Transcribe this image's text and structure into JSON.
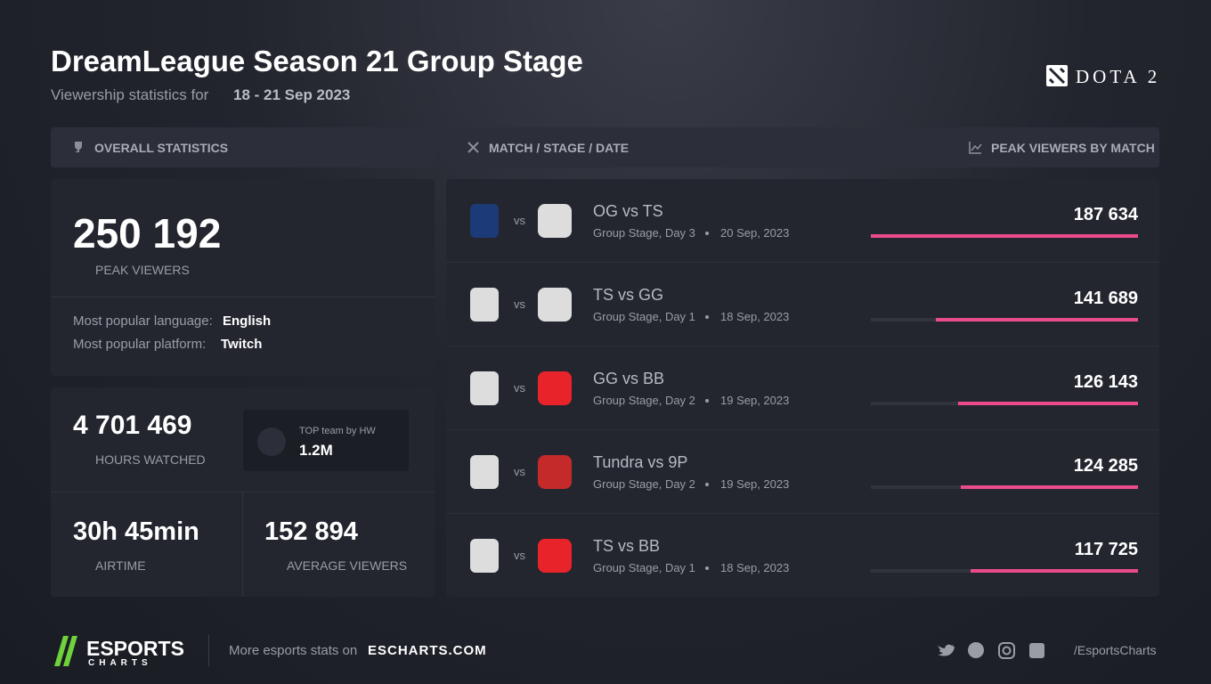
{
  "header": {
    "title": "DreamLeague Season 21 Group Stage",
    "subtitle": "Viewership statistics for",
    "dates": "18 - 21 Sep 2023",
    "game": "DOTA 2"
  },
  "overall": {
    "heading": "OVERALL STATISTICS",
    "peak_viewers": "250 192",
    "peak_viewers_label": "PEAK VIEWERS",
    "language_label": "Most popular language:",
    "language": "English",
    "platform_label": "Most popular platform:",
    "platform": "Twitch",
    "hours_watched": "4 701 469",
    "hours_watched_label": "HOURS WATCHED",
    "top_team_label": "TOP team by HW",
    "top_team_value": "1.2M",
    "airtime": "30h 45min",
    "airtime_label": "AIRTIME",
    "average_viewers": "152 894",
    "average_viewers_label": "AVERAGE VIEWERS"
  },
  "matches_heading": "MATCH / STAGE / DATE",
  "peak_heading": "PEAK VIEWERS BY MATCH",
  "vs_label": "vs",
  "matches": [
    {
      "title": "OG vs TS",
      "stage": "Group Stage, Day 3",
      "date": "20 Sep, 2023",
      "peak_viewers": {
        "value": 187634,
        "label": "187 634"
      }
    },
    {
      "title": "TS vs GG",
      "stage": "Group Stage, Day 1",
      "date": "18 Sep, 2023",
      "peak_viewers": {
        "value": 141689,
        "label": "141 689"
      }
    },
    {
      "title": "GG vs BB",
      "stage": "Group Stage, Day 2",
      "date": "19 Sep, 2023",
      "peak_viewers": {
        "value": 126143,
        "label": "126 143"
      }
    },
    {
      "title": "Tundra vs 9P",
      "stage": "Group Stage, Day 2",
      "date": "19 Sep, 2023",
      "peak_viewers": {
        "value": 124285,
        "label": "124 285"
      }
    },
    {
      "title": "TS vs BB",
      "stage": "Group Stage, Day 1",
      "date": "18 Sep, 2023",
      "peak_viewers": {
        "value": 117725,
        "label": "117 725"
      }
    }
  ],
  "footer": {
    "brand": "ESPORTS",
    "brand_sub": "CHARTS",
    "more": "More esports stats on",
    "site": "ESCHARTS.COM",
    "handle": "/EsportsCharts"
  }
}
